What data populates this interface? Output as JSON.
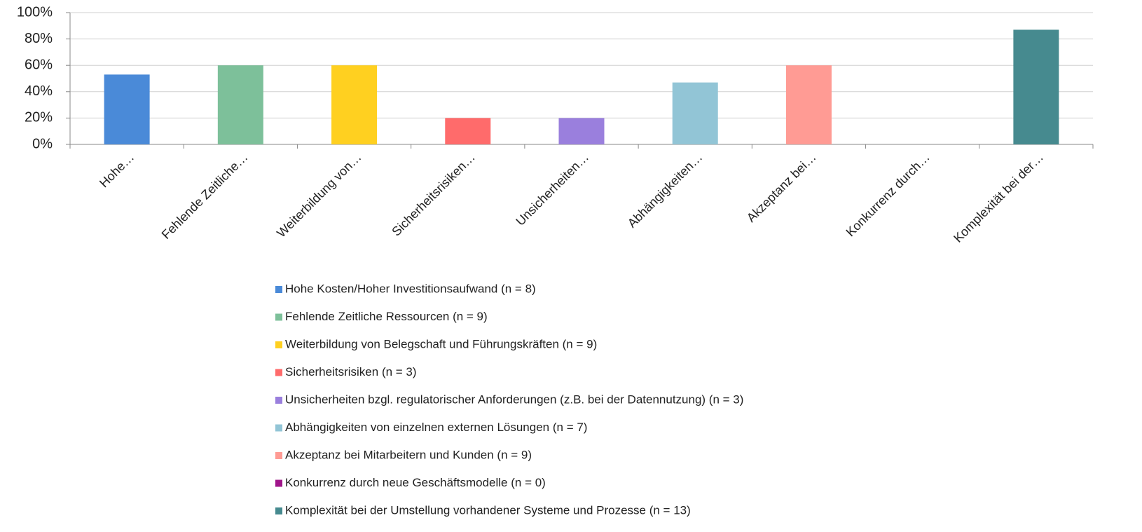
{
  "chart_data": {
    "type": "bar",
    "categories": [
      "Hohe…",
      "Fehlende Zeitliche…",
      "Weiterbildung von…",
      "Sicherheitsrisiken…",
      "Unsicherheiten…",
      "Abhängigkeiten…",
      "Akzeptanz bei…",
      "Konkurrenz durch…",
      "Komplexität bei der…"
    ],
    "values": [
      53,
      60,
      60,
      20,
      20,
      47,
      60,
      0,
      87
    ],
    "colors": [
      "#4a8ad8",
      "#7dc09a",
      "#ffd020",
      "#ff6b6b",
      "#9a7fdd",
      "#92c5d6",
      "#ff9b94",
      "#a0158a",
      "#468a8f"
    ],
    "legend": [
      "Hohe Kosten/Hoher Investitionsaufwand (n = 8)",
      "Fehlende Zeitliche Ressourcen (n = 9)",
      "Weiterbildung von Belegschaft und Führungskräften (n = 9)",
      "Sicherheitsrisiken (n = 3)",
      "Unsicherheiten bzgl. regulatorischer Anforderungen (z.B. bei der Datennutzung) (n = 3)",
      "Abhängigkeiten von einzelnen externen Lösungen (n = 7)",
      "Akzeptanz bei Mitarbeitern und Kunden (n = 9)",
      "Konkurrenz durch neue Geschäftsmodelle (n = 0)",
      "Komplexität bei der Umstellung vorhandener Systeme und Prozesse (n = 13)"
    ],
    "ylim": [
      0,
      100
    ],
    "yticks": [
      {
        "value": 0,
        "label": "0%"
      },
      {
        "value": 20,
        "label": "20%"
      },
      {
        "value": 40,
        "label": "40%"
      },
      {
        "value": 60,
        "label": "60%"
      },
      {
        "value": 80,
        "label": "80%"
      },
      {
        "value": 100,
        "label": "100%"
      }
    ],
    "grid": true
  }
}
